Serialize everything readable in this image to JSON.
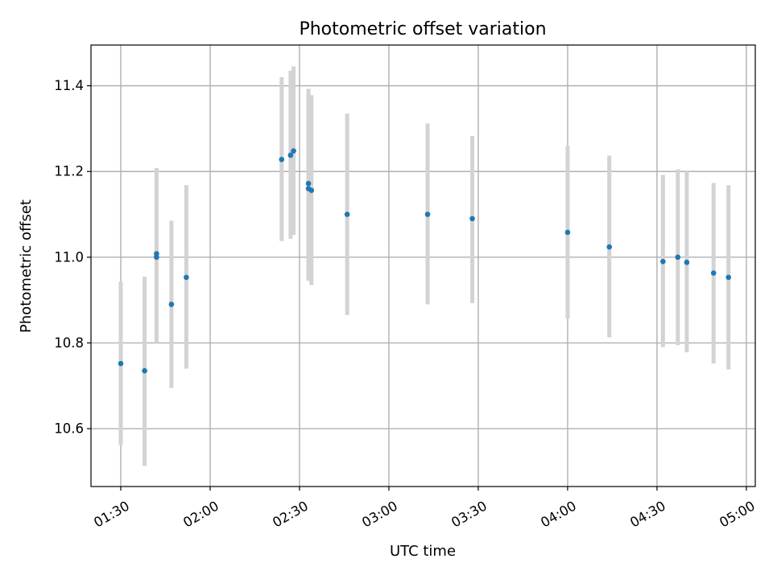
{
  "chart_data": {
    "type": "scatter",
    "title": "Photometric offset variation",
    "xlabel": "UTC time",
    "ylabel": "Photometric offset",
    "xlim": [
      "01:20",
      "05:03"
    ],
    "ylim": [
      10.465,
      11.495
    ],
    "grid": true,
    "x_ticks": [
      "01:30",
      "02:00",
      "02:30",
      "03:00",
      "03:30",
      "04:00",
      "04:30",
      "05:00"
    ],
    "y_ticks": [
      "10.6",
      "10.8",
      "11.0",
      "11.2",
      "11.4"
    ],
    "marker_color": "#1f77b4",
    "errorbar_color": "#d3d3d3",
    "points": [
      {
        "t": "01:30",
        "y": 10.752,
        "lo": 10.562,
        "hi": 10.943
      },
      {
        "t": "01:38",
        "y": 10.735,
        "lo": 10.513,
        "hi": 10.955
      },
      {
        "t": "01:42",
        "y": 11.008,
        "lo": 10.81,
        "hi": 11.208
      },
      {
        "t": "01:42",
        "y": 11.0,
        "lo": 10.8,
        "hi": 11.205
      },
      {
        "t": "01:47",
        "y": 10.89,
        "lo": 10.695,
        "hi": 11.085
      },
      {
        "t": "01:52",
        "y": 10.953,
        "lo": 10.74,
        "hi": 11.168
      },
      {
        "t": "02:24",
        "y": 11.228,
        "lo": 11.038,
        "hi": 11.42
      },
      {
        "t": "02:27",
        "y": 11.238,
        "lo": 11.043,
        "hi": 11.435
      },
      {
        "t": "02:28",
        "y": 11.248,
        "lo": 11.052,
        "hi": 11.445
      },
      {
        "t": "02:33",
        "y": 11.172,
        "lo": 10.95,
        "hi": 11.393
      },
      {
        "t": "02:33",
        "y": 11.16,
        "lo": 10.945,
        "hi": 11.385
      },
      {
        "t": "02:34",
        "y": 11.156,
        "lo": 10.935,
        "hi": 11.378
      },
      {
        "t": "02:46",
        "y": 11.1,
        "lo": 10.865,
        "hi": 11.335
      },
      {
        "t": "03:13",
        "y": 11.1,
        "lo": 10.89,
        "hi": 11.312
      },
      {
        "t": "03:28",
        "y": 11.09,
        "lo": 10.893,
        "hi": 11.283
      },
      {
        "t": "04:00",
        "y": 11.058,
        "lo": 10.857,
        "hi": 11.26
      },
      {
        "t": "04:14",
        "y": 11.024,
        "lo": 10.813,
        "hi": 11.237
      },
      {
        "t": "04:32",
        "y": 10.99,
        "lo": 10.79,
        "hi": 11.192
      },
      {
        "t": "04:37",
        "y": 11.0,
        "lo": 10.795,
        "hi": 11.205
      },
      {
        "t": "04:40",
        "y": 10.988,
        "lo": 10.778,
        "hi": 11.2
      },
      {
        "t": "04:49",
        "y": 10.963,
        "lo": 10.752,
        "hi": 11.173
      },
      {
        "t": "04:54",
        "y": 10.953,
        "lo": 10.738,
        "hi": 11.168
      }
    ]
  }
}
